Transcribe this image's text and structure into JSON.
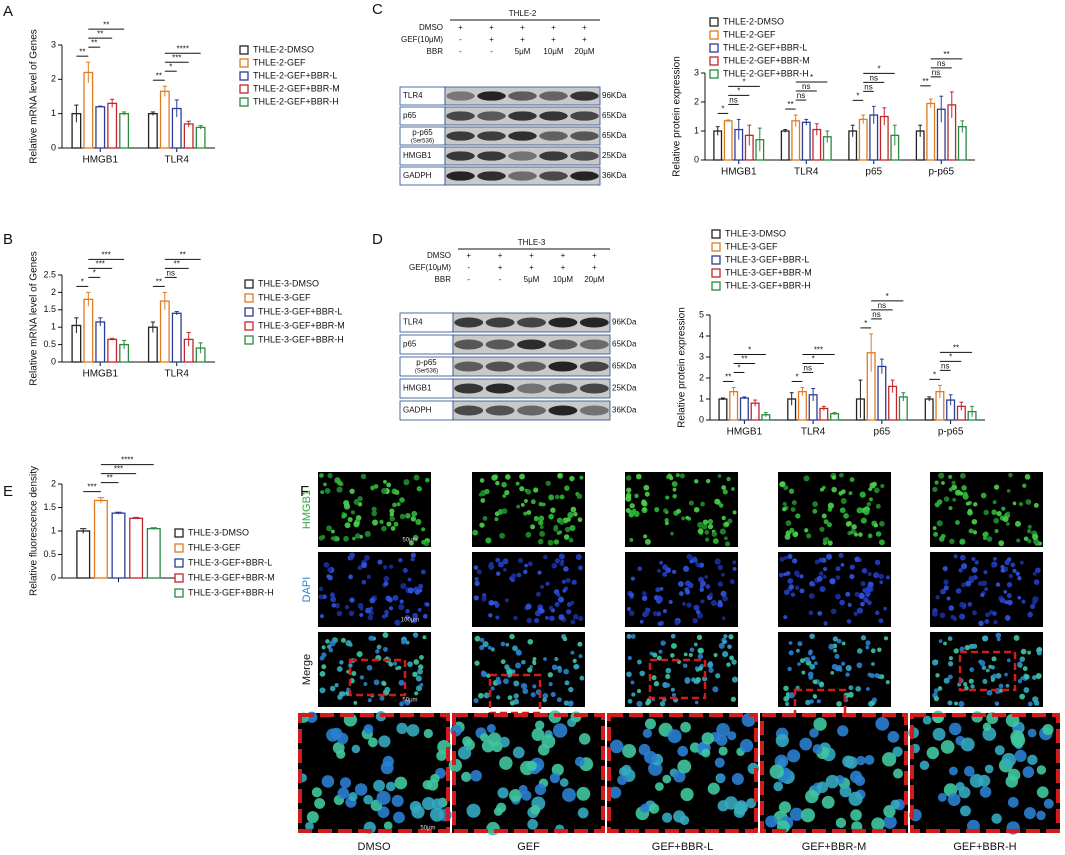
{
  "panel_labels": [
    "A",
    "B",
    "C",
    "D",
    "E",
    "F"
  ],
  "chart_data": [
    {
      "type": "bar",
      "y_label": "Relative mRNA level of Genes",
      "categories": [
        "HMGB1",
        "TLR4"
      ],
      "ylim": [
        0,
        3
      ],
      "yticks": [
        0,
        1,
        2,
        3
      ],
      "series": [
        {
          "name": "THLE-2-DMSO",
          "color": "#222222",
          "values": [
            1.0,
            1.0
          ],
          "errors": [
            0.25,
            0.05
          ]
        },
        {
          "name": "THLE-2-GEF",
          "color": "#e07b22",
          "values": [
            2.2,
            1.65
          ],
          "errors": [
            0.3,
            0.15
          ]
        },
        {
          "name": "THLE-2-GEF+BBR-L",
          "color": "#2b3d9a",
          "values": [
            1.2,
            1.15
          ],
          "errors": [
            0.02,
            0.25
          ]
        },
        {
          "name": "THLE-2-GEF+BBR-M",
          "color": "#c0272d",
          "values": [
            1.3,
            0.7
          ],
          "errors": [
            0.12,
            0.08
          ]
        },
        {
          "name": "THLE-2-GEF+BBR-H",
          "color": "#2a8a3e",
          "values": [
            1.0,
            0.6
          ],
          "errors": [
            0.05,
            0.05
          ]
        }
      ],
      "significance": [
        {
          "category": 0,
          "from": 0,
          "to": 1,
          "label": "**"
        },
        {
          "category": 0,
          "from": 1,
          "to": 2,
          "label": "**"
        },
        {
          "category": 0,
          "from": 1,
          "to": 3,
          "label": "**"
        },
        {
          "category": 0,
          "from": 1,
          "to": 4,
          "label": "**"
        },
        {
          "category": 1,
          "from": 0,
          "to": 1,
          "label": "**"
        },
        {
          "category": 1,
          "from": 1,
          "to": 2,
          "label": "*"
        },
        {
          "category": 1,
          "from": 1,
          "to": 3,
          "label": "***"
        },
        {
          "category": 1,
          "from": 1,
          "to": 4,
          "label": "****"
        }
      ]
    },
    {
      "type": "bar",
      "y_label": "Relative mRNA level of Genes",
      "categories": [
        "HMGB1",
        "TLR4"
      ],
      "ylim": [
        0,
        2.5
      ],
      "yticks": [
        0,
        0.5,
        1,
        1.5,
        2,
        2.5
      ],
      "series": [
        {
          "name": "THLE-3-DMSO",
          "color": "#222222",
          "values": [
            1.05,
            1.0
          ],
          "errors": [
            0.22,
            0.15
          ]
        },
        {
          "name": "THLE-3-GEF",
          "color": "#e07b22",
          "values": [
            1.8,
            1.75
          ],
          "errors": [
            0.2,
            0.25
          ]
        },
        {
          "name": "THLE-3-GEF+BBR-L",
          "color": "#2b3d9a",
          "values": [
            1.15,
            1.4
          ],
          "errors": [
            0.12,
            0.05
          ]
        },
        {
          "name": "THLE-3-GEF+BBR-M",
          "color": "#c0272d",
          "values": [
            0.65,
            0.65
          ],
          "errors": [
            0.03,
            0.2
          ]
        },
        {
          "name": "THLE-3-GEF+BBR-H",
          "color": "#2a8a3e",
          "values": [
            0.5,
            0.4
          ],
          "errors": [
            0.12,
            0.15
          ]
        }
      ],
      "significance": [
        {
          "category": 0,
          "from": 0,
          "to": 1,
          "label": "*"
        },
        {
          "category": 0,
          "from": 1,
          "to": 2,
          "label": "*"
        },
        {
          "category": 0,
          "from": 1,
          "to": 3,
          "label": "***"
        },
        {
          "category": 0,
          "from": 1,
          "to": 4,
          "label": "***"
        },
        {
          "category": 1,
          "from": 0,
          "to": 1,
          "label": "**"
        },
        {
          "category": 1,
          "from": 1,
          "to": 2,
          "label": "ns"
        },
        {
          "category": 1,
          "from": 1,
          "to": 3,
          "label": "**"
        },
        {
          "category": 1,
          "from": 1,
          "to": 4,
          "label": "**"
        }
      ]
    },
    {
      "type": "bar",
      "y_label": "Relative protein expression",
      "categories": [
        "HMGB1",
        "TLR4",
        "p65",
        "p-p65"
      ],
      "ylim": [
        0,
        3
      ],
      "yticks": [
        0,
        1,
        2,
        3
      ],
      "series": [
        {
          "name": "THLE-2-DMSO",
          "color": "#222222",
          "values": [
            1.0,
            1.0,
            1.0,
            1.0
          ],
          "errors": [
            0.15,
            0.05,
            0.2,
            0.2
          ]
        },
        {
          "name": "THLE-2-GEF",
          "color": "#e07b22",
          "values": [
            1.35,
            1.35,
            1.4,
            1.95
          ],
          "errors": [
            0.03,
            0.2,
            0.15,
            0.15
          ]
        },
        {
          "name": "THLE-2-GEF+BBR-L",
          "color": "#2b3d9a",
          "values": [
            1.05,
            1.3,
            1.55,
            1.75
          ],
          "errors": [
            0.35,
            0.1,
            0.3,
            0.45
          ]
        },
        {
          "name": "THLE-2-GEF+BBR-M",
          "color": "#c0272d",
          "values": [
            0.85,
            1.05,
            1.5,
            1.9
          ],
          "errors": [
            0.35,
            0.2,
            0.3,
            0.45
          ]
        },
        {
          "name": "THLE-2-GEF+BBR-H",
          "color": "#2a8a3e",
          "values": [
            0.7,
            0.8,
            0.85,
            1.15
          ],
          "errors": [
            0.4,
            0.2,
            0.35,
            0.2
          ]
        }
      ],
      "significance": [
        {
          "category": 0,
          "from": 0,
          "to": 1,
          "label": "*"
        },
        {
          "category": 0,
          "from": 1,
          "to": 2,
          "label": "ns"
        },
        {
          "category": 0,
          "from": 1,
          "to": 3,
          "label": "*"
        },
        {
          "category": 0,
          "from": 1,
          "to": 4,
          "label": "*"
        },
        {
          "category": 1,
          "from": 0,
          "to": 1,
          "label": "**"
        },
        {
          "category": 1,
          "from": 1,
          "to": 2,
          "label": "ns"
        },
        {
          "category": 1,
          "from": 1,
          "to": 3,
          "label": "ns"
        },
        {
          "category": 1,
          "from": 1,
          "to": 4,
          "label": "*"
        },
        {
          "category": 2,
          "from": 0,
          "to": 1,
          "label": "*"
        },
        {
          "category": 2,
          "from": 1,
          "to": 2,
          "label": "ns"
        },
        {
          "category": 2,
          "from": 1,
          "to": 3,
          "label": "ns"
        },
        {
          "category": 2,
          "from": 1,
          "to": 4,
          "label": "*"
        },
        {
          "category": 3,
          "from": 0,
          "to": 1,
          "label": "**"
        },
        {
          "category": 3,
          "from": 1,
          "to": 2,
          "label": "ns"
        },
        {
          "category": 3,
          "from": 1,
          "to": 3,
          "label": "ns"
        },
        {
          "category": 3,
          "from": 1,
          "to": 4,
          "label": "**"
        }
      ]
    },
    {
      "type": "bar",
      "y_label": "Relative protein expression",
      "categories": [
        "HMGB1",
        "TLR4",
        "p65",
        "p-p65"
      ],
      "ylim": [
        0,
        5
      ],
      "yticks": [
        0,
        1,
        2,
        3,
        4,
        5
      ],
      "series": [
        {
          "name": "THLE-3-DMSO",
          "color": "#222222",
          "values": [
            1.0,
            1.0,
            1.0,
            1.0
          ],
          "errors": [
            0.05,
            0.3,
            0.9,
            0.1
          ]
        },
        {
          "name": "THLE-3-GEF",
          "color": "#e07b22",
          "values": [
            1.35,
            1.35,
            3.2,
            1.35
          ],
          "errors": [
            0.2,
            0.2,
            0.9,
            0.3
          ]
        },
        {
          "name": "THLE-3-GEF+BBR-L",
          "color": "#2b3d9a",
          "values": [
            1.05,
            1.2,
            2.55,
            0.95
          ],
          "errors": [
            0.05,
            0.3,
            0.35,
            0.25
          ]
        },
        {
          "name": "THLE-3-GEF+BBR-M",
          "color": "#c0272d",
          "values": [
            0.8,
            0.55,
            1.6,
            0.65
          ],
          "errors": [
            0.15,
            0.1,
            0.3,
            0.2
          ]
        },
        {
          "name": "THLE-3-GEF+BBR-H",
          "color": "#2a8a3e",
          "values": [
            0.25,
            0.3,
            1.1,
            0.4
          ],
          "errors": [
            0.1,
            0.05,
            0.2,
            0.25
          ]
        }
      ],
      "significance": [
        {
          "category": 0,
          "from": 0,
          "to": 1,
          "label": "**"
        },
        {
          "category": 0,
          "from": 1,
          "to": 2,
          "label": "*"
        },
        {
          "category": 0,
          "from": 1,
          "to": 3,
          "label": "**"
        },
        {
          "category": 0,
          "from": 1,
          "to": 4,
          "label": "*"
        },
        {
          "category": 1,
          "from": 0,
          "to": 1,
          "label": "*"
        },
        {
          "category": 1,
          "from": 1,
          "to": 2,
          "label": "ns"
        },
        {
          "category": 1,
          "from": 1,
          "to": 3,
          "label": "*"
        },
        {
          "category": 1,
          "from": 1,
          "to": 4,
          "label": "***"
        },
        {
          "category": 2,
          "from": 0,
          "to": 1,
          "label": "*"
        },
        {
          "category": 2,
          "from": 1,
          "to": 2,
          "label": "ns"
        },
        {
          "category": 2,
          "from": 1,
          "to": 3,
          "label": "ns"
        },
        {
          "category": 2,
          "from": 1,
          "to": 4,
          "label": "*"
        },
        {
          "category": 3,
          "from": 0,
          "to": 1,
          "label": "*"
        },
        {
          "category": 3,
          "from": 1,
          "to": 2,
          "label": "ns"
        },
        {
          "category": 3,
          "from": 1,
          "to": 3,
          "label": "*"
        },
        {
          "category": 3,
          "from": 1,
          "to": 4,
          "label": "**"
        }
      ]
    },
    {
      "type": "bar",
      "y_label": "Relative  fluorescence density",
      "categories": [
        null
      ],
      "ylim": [
        0,
        2
      ],
      "yticks": [
        0,
        0.5,
        1,
        1.5,
        2
      ],
      "series": [
        {
          "name": "THLE-3-DMSO",
          "color": "#222222",
          "values": [
            1.0
          ],
          "errors": [
            0.05
          ]
        },
        {
          "name": "THLE-3-GEF",
          "color": "#e07b22",
          "values": [
            1.65
          ],
          "errors": [
            0.06
          ]
        },
        {
          "name": "THLE-3-GEF+BBR-L",
          "color": "#2b3d9a",
          "values": [
            1.38
          ],
          "errors": [
            0.02
          ]
        },
        {
          "name": "THLE-3-GEF+BBR-M",
          "color": "#c0272d",
          "values": [
            1.27
          ],
          "errors": [
            0.02
          ]
        },
        {
          "name": "THLE-3-GEF+BBR-H",
          "color": "#2a8a3e",
          "values": [
            1.05
          ],
          "errors": [
            0.02
          ]
        }
      ],
      "significance": [
        {
          "category": 0,
          "from": 0,
          "to": 1,
          "label": "***"
        },
        {
          "category": 0,
          "from": 1,
          "to": 2,
          "label": "**"
        },
        {
          "category": 0,
          "from": 1,
          "to": 3,
          "label": "***"
        },
        {
          "category": 0,
          "from": 1,
          "to": 4,
          "label": "****"
        }
      ]
    }
  ],
  "blots": [
    {
      "title": "THLE-2",
      "treatments": [
        {
          "name": "DMSO",
          "lanes": [
            "+",
            "+",
            "+",
            "+",
            "+"
          ]
        },
        {
          "name": "GEF(10μM)",
          "lanes": [
            "-",
            "+",
            "+",
            "+",
            "+"
          ]
        },
        {
          "name": "BBR",
          "lanes": [
            "-",
            "-",
            "5μM",
            "10μM",
            "20μM"
          ]
        }
      ],
      "bands": [
        {
          "name": "TLR4",
          "size": "96KDa"
        },
        {
          "name": "p65",
          "size": "65KDa"
        },
        {
          "name": "p-p65",
          "sub": "(Ser536)",
          "size": "65KDa"
        },
        {
          "name": "HMGB1",
          "size": "25KDa"
        },
        {
          "name": "GADPH",
          "size": "36KDa"
        }
      ]
    },
    {
      "title": "THLE-3",
      "treatments": [
        {
          "name": "DMSO",
          "lanes": [
            "+",
            "+",
            "+",
            "+",
            "+"
          ]
        },
        {
          "name": "GEF(10μM)",
          "lanes": [
            "-",
            "+",
            "+",
            "+",
            "+"
          ]
        },
        {
          "name": "BBR",
          "lanes": [
            "-",
            "-",
            "5μM",
            "10μM",
            "20μM"
          ]
        }
      ],
      "bands": [
        {
          "name": "TLR4",
          "size": "96KDa"
        },
        {
          "name": "p65",
          "size": "65KDa"
        },
        {
          "name": "p-p65",
          "sub": "(Ser536)",
          "size": "65KDa"
        },
        {
          "name": "HMGB1",
          "size": "25KDa"
        },
        {
          "name": "GADPH",
          "size": "36KDa"
        }
      ]
    }
  ],
  "images": {
    "rows": [
      "HMGB1",
      "DAPI",
      "Merge"
    ],
    "columns": [
      "DMSO",
      "GEF",
      "GEF+BBR-L",
      "GEF+BBR-M",
      "GEF+BBR-H"
    ],
    "scale_bars": [
      "50μm",
      "100μm",
      "50μm",
      "50μm"
    ]
  }
}
